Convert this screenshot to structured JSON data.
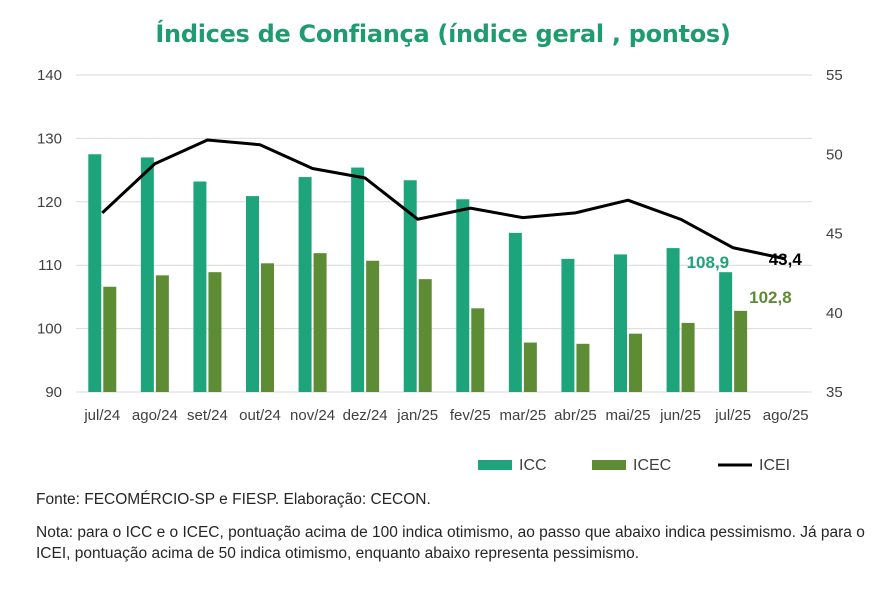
{
  "chart_data": {
    "type": "bar+line",
    "title": "Índices de Confiança (índice geral , pontos)",
    "categories": [
      "jul/24",
      "ago/24",
      "set/24",
      "out/24",
      "nov/24",
      "dez/24",
      "jan/25",
      "fev/25",
      "mar/25",
      "abr/25",
      "mai/25",
      "jun/25",
      "jul/25",
      "ago/25"
    ],
    "left_axis": {
      "ylim": [
        90,
        140
      ],
      "ticks": [
        "90",
        "100",
        "110",
        "120",
        "130",
        "140"
      ]
    },
    "right_axis": {
      "ylim": [
        35,
        55
      ],
      "ticks": [
        "35",
        "40",
        "45",
        "50",
        "55"
      ]
    },
    "series": [
      {
        "name": "ICC",
        "kind": "bar",
        "axis": "left",
        "color": "#1ea47a",
        "values": [
          127.5,
          127.0,
          123.2,
          120.9,
          123.9,
          125.4,
          123.4,
          120.4,
          115.1,
          111.0,
          111.7,
          112.7,
          108.9,
          null
        ]
      },
      {
        "name": "ICEC",
        "kind": "bar",
        "axis": "left",
        "color": "#5d8c35",
        "values": [
          106.6,
          108.4,
          108.9,
          110.3,
          111.9,
          110.7,
          107.8,
          103.2,
          97.8,
          97.6,
          99.2,
          100.9,
          102.8,
          null
        ]
      },
      {
        "name": "ICEI",
        "kind": "line",
        "axis": "right",
        "color": "#000000",
        "values": [
          46.3,
          49.4,
          50.9,
          50.6,
          49.1,
          48.5,
          45.9,
          46.6,
          46.0,
          46.3,
          47.1,
          45.9,
          44.1,
          43.4
        ]
      }
    ],
    "data_labels": [
      {
        "text": "108,9",
        "color": "#1ea47a"
      },
      {
        "text": "102,8",
        "color": "#5d8c35"
      },
      {
        "text": "43,4",
        "color": "#000000"
      }
    ],
    "grid": true,
    "legend_position": "bottom-right"
  },
  "notes": {
    "source": "Fonte: FECOMÉRCIO-SP e FIESP. Elaboração: CECON.",
    "explanation": "Nota: para o ICC e o ICEC, pontuação acima de 100 indica otimismo, ao passo que abaixo indica pessimismo. Já para o ICEI, pontuação acima de 50 indica otimismo, enquanto abaixo representa pessimismo."
  }
}
